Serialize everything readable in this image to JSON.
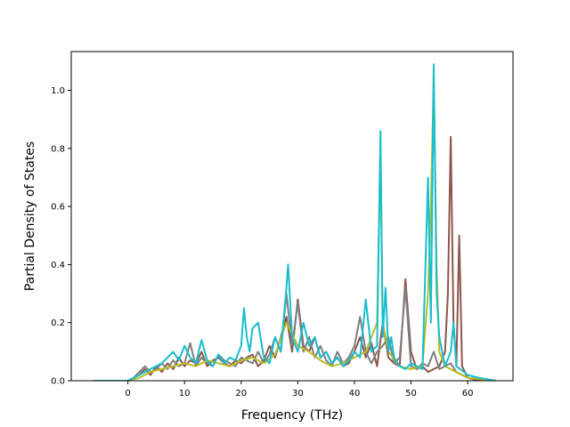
{
  "chart_data": {
    "type": "line",
    "xlabel": "Frequency (THz)",
    "ylabel": "Partial Density of States",
    "xlim": [
      -10,
      68
    ],
    "ylim": [
      0,
      1.1333
    ],
    "xticks": [
      0,
      10,
      20,
      30,
      40,
      50,
      60
    ],
    "xtick_labels": [
      "0",
      "10",
      "20",
      "30",
      "40",
      "50",
      "60"
    ],
    "yticks": [
      0.0,
      0.2,
      0.4,
      0.6,
      0.8,
      1.0
    ],
    "ytick_labels": [
      "0.0",
      "0.2",
      "0.4",
      "0.6",
      "0.8",
      "1.0"
    ],
    "grid": false,
    "legend": "none",
    "series": [
      {
        "color": "#8c564b",
        "x": [
          -6,
          0,
          1,
          2,
          3,
          4,
          5,
          6,
          7,
          8,
          9,
          10,
          11,
          12,
          13,
          14,
          15,
          16,
          17,
          18,
          19,
          20,
          21,
          22,
          23,
          24,
          25,
          26,
          27,
          28,
          29,
          30,
          31,
          32,
          33,
          34,
          35,
          36,
          37,
          38,
          39,
          40,
          41,
          42,
          43,
          44,
          45,
          46,
          47,
          48,
          49,
          50,
          51,
          52,
          53,
          54,
          55,
          56,
          56.5,
          57,
          57.5,
          58,
          58.5,
          59,
          60,
          62,
          65
        ],
        "y": [
          0,
          0,
          0.01,
          0.02,
          0.04,
          0.02,
          0.05,
          0.03,
          0.06,
          0.04,
          0.08,
          0.05,
          0.07,
          0.06,
          0.1,
          0.05,
          0.07,
          0.08,
          0.06,
          0.05,
          0.07,
          0.06,
          0.08,
          0.09,
          0.05,
          0.07,
          0.12,
          0.08,
          0.15,
          0.22,
          0.1,
          0.28,
          0.12,
          0.1,
          0.15,
          0.08,
          0.1,
          0.06,
          0.08,
          0.05,
          0.06,
          0.1,
          0.15,
          0.08,
          0.13,
          0.05,
          0.2,
          0.08,
          0.06,
          0.05,
          0.35,
          0.1,
          0.04,
          0.05,
          0.03,
          0.04,
          0.05,
          0.1,
          0.3,
          0.84,
          0.2,
          0.05,
          0.5,
          0.05,
          0.01,
          0,
          0
        ]
      },
      {
        "color": "#7f7f7f",
        "x": [
          -6,
          0,
          1,
          2,
          3,
          4,
          5,
          6,
          7,
          8,
          9,
          10,
          11,
          12,
          13,
          14,
          15,
          16,
          17,
          18,
          19,
          20,
          21,
          22,
          23,
          24,
          25,
          26,
          27,
          28,
          29,
          30,
          31,
          32,
          33,
          34,
          35,
          36,
          37,
          38,
          39,
          40,
          41,
          42,
          43,
          44,
          45,
          46,
          47,
          48,
          49,
          50,
          51,
          52,
          53,
          54,
          55,
          56,
          57,
          58,
          60,
          65
        ],
        "y": [
          0,
          0,
          0.01,
          0.03,
          0.05,
          0.03,
          0.04,
          0.06,
          0.04,
          0.07,
          0.05,
          0.06,
          0.13,
          0.05,
          0.08,
          0.06,
          0.05,
          0.09,
          0.07,
          0.06,
          0.05,
          0.08,
          0.07,
          0.06,
          0.1,
          0.06,
          0.09,
          0.15,
          0.1,
          0.3,
          0.12,
          0.27,
          0.1,
          0.15,
          0.08,
          0.12,
          0.07,
          0.05,
          0.1,
          0.06,
          0.08,
          0.12,
          0.22,
          0.1,
          0.06,
          0.1,
          0.12,
          0.15,
          0.06,
          0.08,
          0.32,
          0.05,
          0.04,
          0.06,
          0.05,
          0.1,
          0.04,
          0.05,
          0.06,
          0.03,
          0.01,
          0
        ]
      },
      {
        "color": "#bcbd22",
        "x": [
          -6,
          0,
          2,
          4,
          6,
          8,
          10,
          12,
          14,
          16,
          18,
          20,
          22,
          24,
          26,
          28,
          30,
          32,
          34,
          36,
          38,
          40,
          42,
          44,
          44.6,
          45,
          46,
          48,
          50,
          52,
          53,
          53.5,
          54,
          54.5,
          55,
          56,
          58,
          60,
          65
        ],
        "y": [
          0,
          0,
          0.01,
          0.03,
          0.04,
          0.05,
          0.06,
          0.05,
          0.07,
          0.06,
          0.05,
          0.07,
          0.08,
          0.06,
          0.09,
          0.2,
          0.12,
          0.1,
          0.07,
          0.05,
          0.06,
          0.08,
          0.1,
          0.2,
          0.8,
          0.2,
          0.1,
          0.05,
          0.04,
          0.05,
          0.3,
          0.6,
          1.05,
          0.4,
          0.1,
          0.05,
          0.03,
          0.01,
          0
        ]
      },
      {
        "color": "#17becf",
        "x": [
          -6,
          0,
          1,
          2,
          3,
          4,
          5,
          6,
          7,
          8,
          9,
          10,
          11,
          12,
          13,
          14,
          15,
          16,
          17,
          18,
          19,
          20,
          20.5,
          21,
          21.5,
          22,
          23,
          24,
          25,
          26,
          27,
          28,
          28.3,
          29,
          30,
          31,
          32,
          33,
          34,
          35,
          36,
          37,
          38,
          39,
          40,
          41,
          42,
          43,
          44,
          44.6,
          45,
          45.5,
          46,
          46.5,
          47,
          48,
          49,
          50,
          51,
          52,
          53,
          53.5,
          54,
          54.5,
          55,
          56,
          57,
          57.5,
          58,
          60,
          62,
          65
        ],
        "y": [
          0,
          0,
          0.01,
          0.02,
          0.03,
          0.04,
          0.05,
          0.06,
          0.08,
          0.1,
          0.07,
          0.12,
          0.08,
          0.06,
          0.14,
          0.07,
          0.05,
          0.09,
          0.06,
          0.08,
          0.07,
          0.12,
          0.25,
          0.15,
          0.1,
          0.18,
          0.2,
          0.08,
          0.06,
          0.15,
          0.1,
          0.32,
          0.4,
          0.15,
          0.1,
          0.2,
          0.12,
          0.15,
          0.08,
          0.1,
          0.06,
          0.08,
          0.05,
          0.07,
          0.1,
          0.08,
          0.28,
          0.1,
          0.12,
          0.86,
          0.15,
          0.32,
          0.1,
          0.15,
          0.08,
          0.05,
          0.04,
          0.06,
          0.05,
          0.04,
          0.7,
          0.2,
          1.09,
          0.3,
          0.15,
          0.05,
          0.1,
          0.2,
          0.05,
          0.02,
          0.01,
          0
        ]
      }
    ]
  }
}
